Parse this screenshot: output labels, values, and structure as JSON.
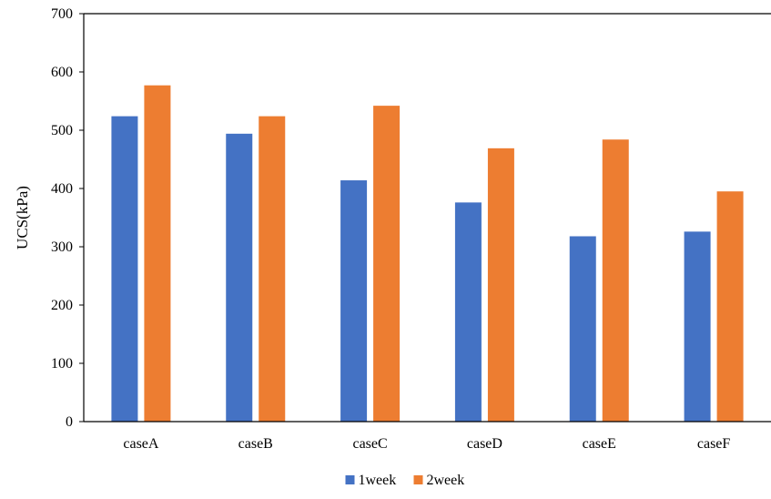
{
  "chart_data": {
    "type": "bar",
    "title": "",
    "xlabel": "",
    "ylabel": "UCS(kPa)",
    "ylim": [
      0,
      700
    ],
    "yticks": [
      0,
      100,
      200,
      300,
      400,
      500,
      600,
      700
    ],
    "grid": false,
    "legend_position": "bottom",
    "categories": [
      "caseA",
      "caseB",
      "caseC",
      "caseD",
      "caseE",
      "caseF"
    ],
    "series": [
      {
        "name": "1week",
        "color": "#4472C4",
        "values": [
          524,
          494,
          414,
          376,
          318,
          326
        ]
      },
      {
        "name": "2week",
        "color": "#ED7D31",
        "values": [
          577,
          524,
          542,
          469,
          484,
          395
        ]
      }
    ]
  }
}
